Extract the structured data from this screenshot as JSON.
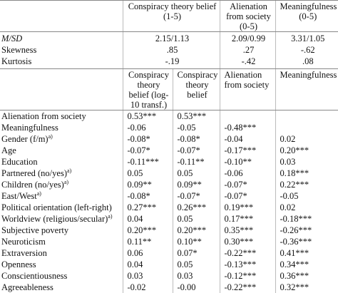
{
  "header": {
    "columns": [
      "Conspiracy theory belief (1-5)",
      "Alienation from society (0-5)",
      "Meaningfulness (0-5)"
    ]
  },
  "descriptives": [
    {
      "label": "M/SD",
      "values": [
        "2.15/1.13",
        "2.09/0.99",
        "3.31/1.05"
      ]
    },
    {
      "label": "Skewness",
      "values": [
        ".85",
        ".27",
        "-.62"
      ]
    },
    {
      "label": "Kurtosis",
      "values": [
        "-.19",
        "-.42",
        ".08"
      ]
    }
  ],
  "subheader": [
    "Conspiracy theory belief (log-10 transf.)",
    "Conspiracy theory belief",
    "Alienation from society",
    "Meaningfulness"
  ],
  "rows": [
    {
      "label": "Alienation from society",
      "values": [
        "0.53***",
        "0.53***"
      ]
    },
    {
      "label": "Meaningfulness",
      "values": [
        "-0.06",
        "-0.05",
        "-0.48***"
      ]
    },
    {
      "label": "Gender (f/m)",
      "note": "a)",
      "values": [
        "-0.08*",
        "-0.08*",
        "-0.04",
        "0.02"
      ]
    },
    {
      "label": "Age",
      "values": [
        "-0.07*",
        "-0.07*",
        "-0.17***",
        "0.20***"
      ]
    },
    {
      "label": "Education",
      "values": [
        "-0.11***",
        "-0.11**",
        "-0.10**",
        "0.03"
      ]
    },
    {
      "label": "Partnered (no/yes)",
      "note": "a)",
      "values": [
        "0.05",
        "0.05",
        "-0.06",
        "0.18***"
      ]
    },
    {
      "label": "Children (no/yes)",
      "note": "a)",
      "values": [
        "0.09**",
        "0.09**",
        "-0.07*",
        "0.22***"
      ]
    },
    {
      "label": "East/West",
      "note": "a)",
      "values": [
        "-0.08*",
        "-0.07*",
        "-0.07*",
        "-0.05"
      ]
    },
    {
      "label": "Political orientation (left-right)",
      "values": [
        "0.27***",
        "0.26***",
        "0.19***",
        "0.02"
      ]
    },
    {
      "label": "Worldview (religious/secular)",
      "note": "a)",
      "values": [
        "0.04",
        "0.05",
        "0.17***",
        "-0.18***"
      ]
    },
    {
      "label": "Subjective poverty",
      "values": [
        "0.20***",
        "0.20***",
        "0.35***",
        "-0.26***"
      ]
    },
    {
      "label": "Neuroticism",
      "values": [
        "0.11**",
        "0.10**",
        "0.30***",
        "-0.36***"
      ]
    },
    {
      "label": "Extraversion",
      "values": [
        "0.06",
        "0.07*",
        "-0.22***",
        "0.41***"
      ]
    },
    {
      "label": "Openness",
      "values": [
        "0.04",
        "0.05",
        "-0.13***",
        "0.34***"
      ]
    },
    {
      "label": "Conscientiousness",
      "values": [
        "0.03",
        "0.03",
        "-0.12***",
        "0.36***"
      ]
    },
    {
      "label": "Agreeableness",
      "values": [
        "-0.02",
        "-0.00",
        "-0.22***",
        "0.32***"
      ]
    }
  ]
}
